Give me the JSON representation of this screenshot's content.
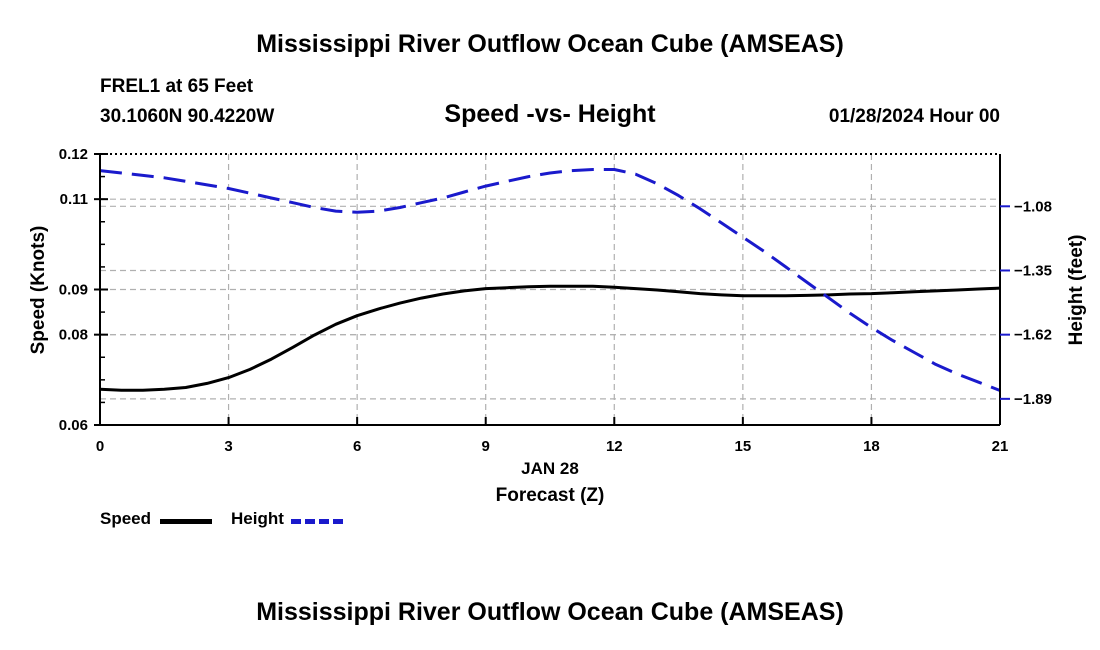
{
  "header": {
    "title": "Mississippi River Outflow Ocean Cube (AMSEAS)",
    "station": "FREL1 at 65 Feet",
    "coords": "30.1060N  90.4220W",
    "chart_title": "Speed -vs- Height",
    "datetime": "01/28/2024 Hour 00"
  },
  "footer": {
    "title": "Mississippi River Outflow Ocean Cube (AMSEAS)"
  },
  "legend": {
    "speed_label": "Speed",
    "height_label": "Height"
  },
  "colors": {
    "speed": "#000000",
    "height": "#1a1acc",
    "grid": "#b0b0b0"
  },
  "chart_data": {
    "type": "line",
    "title": "Speed -vs- Height",
    "xlabel": "Forecast (Z)",
    "xlabel_date": "JAN 28",
    "ylabel_left": "Speed (Knots)",
    "ylabel_right": "Height (feet)",
    "xlim": [
      0,
      21
    ],
    "ylim_left": [
      0.06,
      0.12
    ],
    "ylim_right": [
      -2.0,
      -0.86
    ],
    "x_ticks": [
      0,
      3,
      6,
      9,
      12,
      15,
      18,
      21
    ],
    "x_tick_labels": [
      "0",
      "3",
      "6",
      "9",
      "12",
      "15",
      "18",
      "21"
    ],
    "left_ticks": [
      0.06,
      0.08,
      0.09,
      0.11,
      0.12
    ],
    "left_tick_labels": [
      "0.06",
      "0.08",
      "0.09",
      "0.11",
      "0.12"
    ],
    "right_ticks": [
      -1.89,
      -1.62,
      -1.35,
      -1.08
    ],
    "right_tick_labels": [
      "−1.89",
      "−1.62",
      "−1.35",
      "−1.08"
    ],
    "series": [
      {
        "name": "Speed",
        "axis": "left",
        "style": "solid",
        "x": [
          0,
          0.5,
          1,
          1.5,
          2,
          2.5,
          3,
          3.5,
          4,
          4.5,
          5,
          5.5,
          6,
          6.5,
          7,
          7.5,
          8,
          8.5,
          9,
          9.5,
          10,
          10.5,
          11,
          11.5,
          12,
          12.5,
          13,
          13.5,
          14,
          14.5,
          15,
          15.5,
          16,
          16.5,
          17,
          17.5,
          18,
          18.5,
          19,
          19.5,
          20,
          20.5,
          21
        ],
        "values": [
          0.0679,
          0.0677,
          0.0677,
          0.0679,
          0.0683,
          0.0692,
          0.0705,
          0.0723,
          0.0746,
          0.0772,
          0.0799,
          0.0823,
          0.0842,
          0.0857,
          0.087,
          0.0881,
          0.089,
          0.0897,
          0.0902,
          0.0904,
          0.0906,
          0.0907,
          0.0907,
          0.0907,
          0.0905,
          0.0902,
          0.0899,
          0.0895,
          0.0891,
          0.0888,
          0.0886,
          0.0886,
          0.0886,
          0.0887,
          0.0888,
          0.089,
          0.0891,
          0.0893,
          0.0895,
          0.0897,
          0.0899,
          0.0901,
          0.0903
        ]
      },
      {
        "name": "Height",
        "axis": "right",
        "style": "dashed",
        "x": [
          0,
          0.5,
          1,
          1.5,
          2,
          2.5,
          3,
          3.5,
          4,
          4.5,
          5,
          5.5,
          6,
          6.5,
          7,
          7.5,
          8,
          8.5,
          9,
          9.5,
          10,
          10.5,
          11,
          11.5,
          12,
          12.5,
          13,
          13.5,
          14,
          14.5,
          15,
          15.5,
          16,
          16.5,
          17,
          17.5,
          18,
          18.5,
          19,
          19.5,
          20,
          20.5,
          21
        ],
        "values": [
          -0.93,
          -0.94,
          -0.95,
          -0.96,
          -0.975,
          -0.99,
          -1.005,
          -1.025,
          -1.045,
          -1.065,
          -1.085,
          -1.1,
          -1.105,
          -1.1,
          -1.085,
          -1.065,
          -1.045,
          -1.02,
          -0.995,
          -0.975,
          -0.955,
          -0.94,
          -0.93,
          -0.925,
          -0.925,
          -0.945,
          -0.985,
          -1.035,
          -1.09,
          -1.15,
          -1.21,
          -1.27,
          -1.335,
          -1.4,
          -1.465,
          -1.53,
          -1.59,
          -1.645,
          -1.695,
          -1.745,
          -1.785,
          -1.82,
          -1.855
        ]
      }
    ]
  }
}
